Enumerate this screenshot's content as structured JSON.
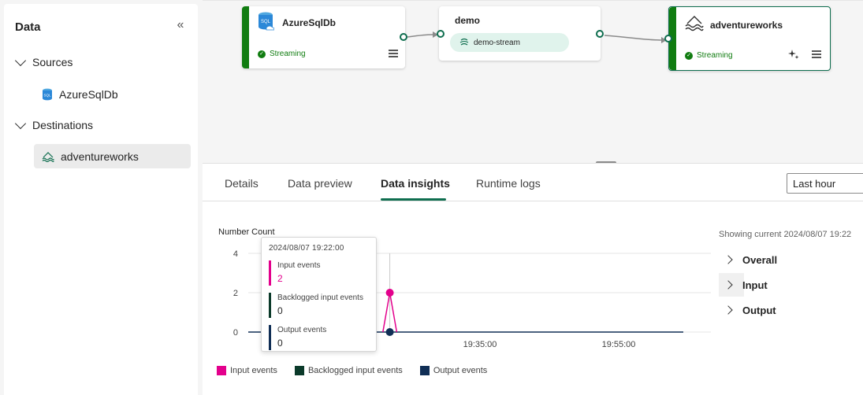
{
  "left_panel": {
    "title": "Data",
    "collapse_icon": "double-chevron-left-icon",
    "sources_label": "Sources",
    "sources": [
      {
        "label": "AzureSqlDb",
        "icon": "sql-database-icon"
      }
    ],
    "destinations_label": "Destinations",
    "destinations": [
      {
        "label": "adventureworks",
        "icon": "eventhouse-icon"
      }
    ]
  },
  "canvas": {
    "source_node": {
      "title": "AzureSqlDb",
      "status": "Streaming"
    },
    "stream_node": {
      "title": "demo",
      "stream_label": "demo-stream"
    },
    "destination_node": {
      "title": "adventureworks",
      "status": "Streaming"
    }
  },
  "tabs": [
    {
      "label": "Details"
    },
    {
      "label": "Data preview"
    },
    {
      "label": "Data insights"
    },
    {
      "label": "Runtime logs"
    }
  ],
  "time_range": {
    "selected": "Last hour"
  },
  "status_text": "Showing current 2024/08/07 19:22",
  "metric_groups": [
    {
      "label": "Overall"
    },
    {
      "label": "Input"
    },
    {
      "label": "Output"
    }
  ],
  "colors": {
    "input": "#e3008c",
    "backlogged": "#0b3a2a",
    "output": "#102e55",
    "accent": "#0f6e4f"
  },
  "chart_data": {
    "type": "line",
    "title": "Number Count",
    "ylim": [
      0,
      4
    ],
    "yticks": [
      "4",
      "2",
      "0"
    ],
    "xticks": [
      "19:35:00",
      "19:55:00"
    ],
    "series": [
      {
        "name": "Input events",
        "x": [
          "19:21:00",
          "19:22:00",
          "19:23:00"
        ],
        "values": [
          0,
          2,
          0
        ]
      },
      {
        "name": "Backlogged input events",
        "x": [
          "19:22:00"
        ],
        "values": [
          0
        ]
      },
      {
        "name": "Output events",
        "x": [
          "19:22:00"
        ],
        "values": [
          0
        ]
      }
    ],
    "legend": "bottom-left"
  },
  "tooltip": {
    "time": "2024/08/07 19:22:00",
    "rows": [
      {
        "label": "Input events",
        "value": "2"
      },
      {
        "label": "Backlogged input events",
        "value": "0"
      },
      {
        "label": "Output events",
        "value": "0"
      }
    ]
  }
}
